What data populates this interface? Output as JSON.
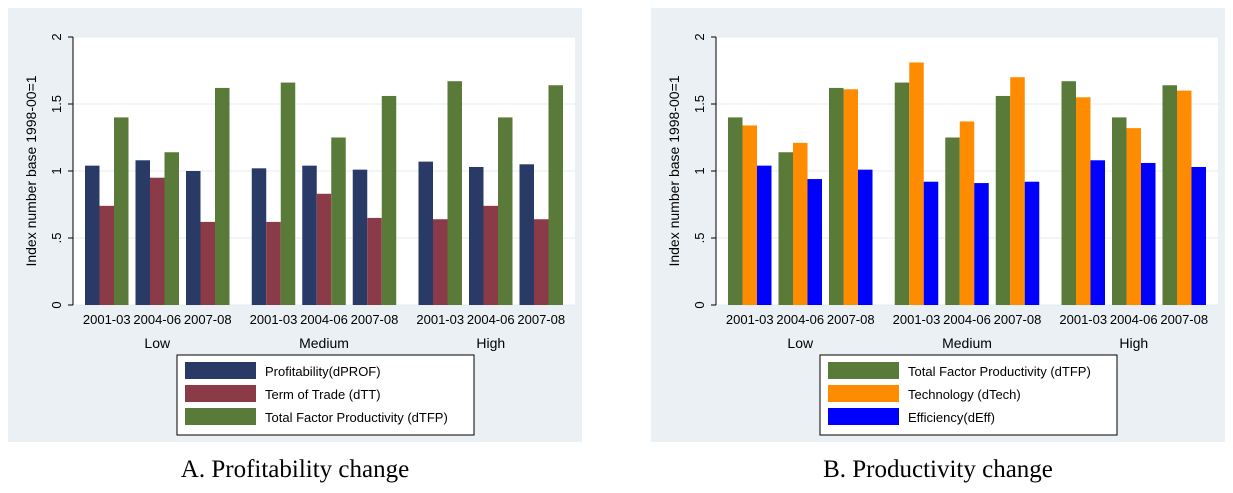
{
  "chart_data": [
    {
      "type": "bar",
      "caption": "A. Profitability change",
      "ylabel": "Index number base 1998-00=1",
      "ylim": [
        0,
        2
      ],
      "yticks": [
        "0",
        ".5",
        "1",
        "1.5",
        "2"
      ],
      "groups": [
        "Low",
        "Medium",
        "High"
      ],
      "categories": [
        "2001-03",
        "2004-06",
        "2007-08"
      ],
      "grid": true,
      "legend_position": "bottom",
      "series": [
        {
          "name": "Profitability(dPROF)",
          "color": "#2a3a66",
          "values": [
            [
              1.04,
              1.08,
              1.0
            ],
            [
              1.02,
              1.04,
              1.01
            ],
            [
              1.07,
              1.03,
              1.05
            ]
          ]
        },
        {
          "name": "Term of Trade (dTT)",
          "color": "#8b3a47",
          "values": [
            [
              0.74,
              0.95,
              0.62
            ],
            [
              0.62,
              0.83,
              0.65
            ],
            [
              0.64,
              0.74,
              0.64
            ]
          ]
        },
        {
          "name": "Total Factor Productivity (dTFP)",
          "color": "#5a7a3a",
          "values": [
            [
              1.4,
              1.14,
              1.62
            ],
            [
              1.66,
              1.25,
              1.56
            ],
            [
              1.67,
              1.4,
              1.64
            ]
          ]
        }
      ]
    },
    {
      "type": "bar",
      "caption": "B. Productivity change",
      "ylabel": "Index number base 1998-00=1",
      "ylim": [
        0,
        2
      ],
      "yticks": [
        "0",
        ".5",
        "1",
        "1.5",
        "2"
      ],
      "groups": [
        "Low",
        "Medium",
        "High"
      ],
      "categories": [
        "2001-03",
        "2004-06",
        "2007-08"
      ],
      "grid": true,
      "legend_position": "bottom",
      "series": [
        {
          "name": "Total Factor Productivity (dTFP)",
          "color": "#5a7a3a",
          "values": [
            [
              1.4,
              1.14,
              1.62
            ],
            [
              1.66,
              1.25,
              1.56
            ],
            [
              1.67,
              1.4,
              1.64
            ]
          ]
        },
        {
          "name": "Technology (dTech)",
          "color": "#ff8c00",
          "values": [
            [
              1.34,
              1.21,
              1.61
            ],
            [
              1.81,
              1.37,
              1.7
            ],
            [
              1.55,
              1.32,
              1.6
            ]
          ]
        },
        {
          "name": "Efficiency(dEff)",
          "color": "#0000ff",
          "values": [
            [
              1.04,
              0.94,
              1.01
            ],
            [
              0.92,
              0.91,
              0.92
            ],
            [
              1.08,
              1.06,
              1.03
            ]
          ]
        }
      ]
    }
  ]
}
